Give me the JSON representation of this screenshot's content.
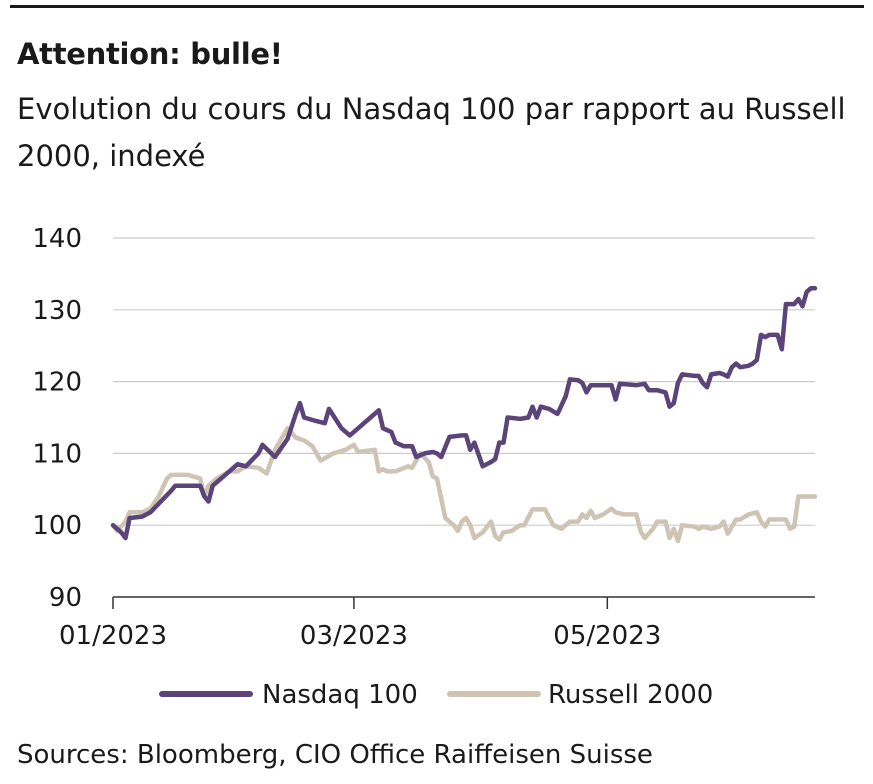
{
  "header": {
    "title": "Attention: bulle!",
    "subtitle": "Evolution du cours du Nasdaq 100 par rapport au Russell 2000, indexé"
  },
  "footer": {
    "source": "Sources: Bloomberg, CIO Office Raiffeisen Suisse"
  },
  "colors": {
    "nasdaq": "#5b4479",
    "russell": "#cfc3b3",
    "grid": "#cccccc",
    "axis": "#333333"
  },
  "chart_data": {
    "type": "line",
    "title": "",
    "xlabel": "",
    "ylabel": "",
    "ylim": [
      90,
      140
    ],
    "yticks": [
      90,
      100,
      110,
      120,
      130,
      140
    ],
    "xlim": [
      "2023-01-02",
      "2023-06-20"
    ],
    "xticks": [
      {
        "label": "01/2023",
        "date": "2023-01-02"
      },
      {
        "label": "03/2023",
        "date": "2023-03-01"
      },
      {
        "label": "05/2023",
        "date": "2023-05-01"
      }
    ],
    "grid": true,
    "legend_position": "bottom",
    "series": [
      {
        "name": "Nasdaq 100",
        "color": "#5b4479",
        "points": [
          [
            "2023-01-02",
            100
          ],
          [
            "2023-01-04",
            99
          ],
          [
            "2023-01-05",
            98.2
          ],
          [
            "2023-01-06",
            101
          ],
          [
            "2023-01-09",
            101.2
          ],
          [
            "2023-01-11",
            101.8
          ],
          [
            "2023-01-13",
            103
          ],
          [
            "2023-01-16",
            104.8
          ],
          [
            "2023-01-17",
            105.5
          ],
          [
            "2023-01-20",
            105.5
          ],
          [
            "2023-01-23",
            105.5
          ],
          [
            "2023-01-24",
            104
          ],
          [
            "2023-01-25",
            103.3
          ],
          [
            "2023-01-26",
            105.5
          ],
          [
            "2023-01-30",
            107.5
          ],
          [
            "2023-02-01",
            108.5
          ],
          [
            "2023-02-03",
            108.2
          ],
          [
            "2023-02-06",
            110
          ],
          [
            "2023-02-07",
            111.2
          ],
          [
            "2023-02-10",
            109.5
          ],
          [
            "2023-02-13",
            112
          ],
          [
            "2023-02-15",
            115.5
          ],
          [
            "2023-02-16",
            117
          ],
          [
            "2023-02-17",
            115
          ],
          [
            "2023-02-20",
            114.5
          ],
          [
            "2023-02-22",
            114.2
          ],
          [
            "2023-02-23",
            116.2
          ],
          [
            "2023-02-26",
            113.5
          ],
          [
            "2023-02-28",
            112.5
          ],
          [
            "2023-03-02",
            113.5
          ],
          [
            "2023-03-05",
            115
          ],
          [
            "2023-03-07",
            116
          ],
          [
            "2023-03-08",
            113.5
          ],
          [
            "2023-03-10",
            113
          ],
          [
            "2023-03-11",
            111.5
          ],
          [
            "2023-03-13",
            111
          ],
          [
            "2023-03-15",
            111
          ],
          [
            "2023-03-16",
            109.5
          ],
          [
            "2023-03-18",
            110
          ],
          [
            "2023-03-20",
            110.2
          ],
          [
            "2023-03-21",
            110
          ],
          [
            "2023-03-22",
            109.5
          ],
          [
            "2023-03-24",
            112.3
          ],
          [
            "2023-03-27",
            112.5
          ],
          [
            "2023-03-28",
            112.5
          ],
          [
            "2023-03-29",
            110.5
          ],
          [
            "2023-03-30",
            111.5
          ],
          [
            "2023-04-01",
            108.2
          ],
          [
            "2023-04-03",
            108.8
          ],
          [
            "2023-04-04",
            109.2
          ],
          [
            "2023-04-05",
            111.5
          ],
          [
            "2023-04-06",
            111.5
          ],
          [
            "2023-04-07",
            115
          ],
          [
            "2023-04-10",
            114.8
          ],
          [
            "2023-04-12",
            115
          ],
          [
            "2023-04-13",
            116.5
          ],
          [
            "2023-04-14",
            115
          ],
          [
            "2023-04-15",
            116.5
          ],
          [
            "2023-04-17",
            116.2
          ],
          [
            "2023-04-19",
            115.5
          ],
          [
            "2023-04-21",
            118
          ],
          [
            "2023-04-22",
            120.3
          ],
          [
            "2023-04-24",
            120.2
          ],
          [
            "2023-04-25",
            119.8
          ],
          [
            "2023-04-26",
            118.5
          ],
          [
            "2023-04-27",
            119.5
          ],
          [
            "2023-04-30",
            119.5
          ],
          [
            "2023-05-02",
            119.5
          ],
          [
            "2023-05-03",
            117.5
          ],
          [
            "2023-05-04",
            119.7
          ],
          [
            "2023-05-08",
            119.5
          ],
          [
            "2023-05-10",
            119.7
          ],
          [
            "2023-05-11",
            118.8
          ],
          [
            "2023-05-13",
            118.8
          ],
          [
            "2023-05-15",
            118.5
          ],
          [
            "2023-05-16",
            116.5
          ],
          [
            "2023-05-17",
            117
          ],
          [
            "2023-05-18",
            119.8
          ],
          [
            "2023-05-19",
            121
          ],
          [
            "2023-05-22",
            120.8
          ],
          [
            "2023-05-23",
            120.8
          ],
          [
            "2023-05-24",
            119.8
          ],
          [
            "2023-05-25",
            119.2
          ],
          [
            "2023-05-26",
            121
          ],
          [
            "2023-05-28",
            121.2
          ],
          [
            "2023-05-29",
            121
          ],
          [
            "2023-05-30",
            120.7
          ],
          [
            "2023-05-31",
            122
          ],
          [
            "2023-06-01",
            122.5
          ],
          [
            "2023-06-02",
            122
          ],
          [
            "2023-06-04",
            122.2
          ],
          [
            "2023-06-05",
            122.5
          ],
          [
            "2023-06-06",
            123
          ],
          [
            "2023-06-07",
            126.5
          ],
          [
            "2023-06-08",
            126.2
          ],
          [
            "2023-06-09",
            126.5
          ],
          [
            "2023-06-11",
            126.5
          ],
          [
            "2023-06-12",
            124.5
          ],
          [
            "2023-06-13",
            130.8
          ],
          [
            "2023-06-14",
            130.8
          ],
          [
            "2023-06-15",
            130.8
          ],
          [
            "2023-06-16",
            131.5
          ],
          [
            "2023-06-17",
            130.5
          ],
          [
            "2023-06-18",
            132.5
          ],
          [
            "2023-06-19",
            133
          ],
          [
            "2023-06-20",
            133
          ]
        ]
      },
      {
        "name": "Russell 2000",
        "color": "#cfc3b3",
        "points": [
          [
            "2023-01-02",
            100
          ],
          [
            "2023-01-03",
            99.2
          ],
          [
            "2023-01-05",
            100.5
          ],
          [
            "2023-01-06",
            101.8
          ],
          [
            "2023-01-09",
            101.8
          ],
          [
            "2023-01-11",
            102.3
          ],
          [
            "2023-01-13",
            104
          ],
          [
            "2023-01-15",
            106.5
          ],
          [
            "2023-01-16",
            107
          ],
          [
            "2023-01-20",
            107
          ],
          [
            "2023-01-23",
            106.5
          ],
          [
            "2023-01-24",
            104
          ],
          [
            "2023-01-25",
            105.5
          ],
          [
            "2023-01-27",
            106.5
          ],
          [
            "2023-01-30",
            107.5
          ],
          [
            "2023-02-01",
            107.5
          ],
          [
            "2023-02-03",
            108.2
          ],
          [
            "2023-02-06",
            108
          ],
          [
            "2023-02-08",
            107.2
          ],
          [
            "2023-02-10",
            110.5
          ],
          [
            "2023-02-13",
            113.5
          ],
          [
            "2023-02-15",
            112.2
          ],
          [
            "2023-02-17",
            111.8
          ],
          [
            "2023-02-19",
            111
          ],
          [
            "2023-02-21",
            109
          ],
          [
            "2023-02-24",
            110
          ],
          [
            "2023-02-27",
            110.5
          ],
          [
            "2023-03-01",
            111.2
          ],
          [
            "2023-03-02",
            110.2
          ],
          [
            "2023-03-06",
            110.5
          ],
          [
            "2023-03-07",
            107.5
          ],
          [
            "2023-03-08",
            107.8
          ],
          [
            "2023-03-09",
            107.5
          ],
          [
            "2023-03-11",
            107.5
          ],
          [
            "2023-03-14",
            108.2
          ],
          [
            "2023-03-15",
            108
          ],
          [
            "2023-03-17",
            110
          ],
          [
            "2023-03-19",
            108.8
          ],
          [
            "2023-03-20",
            106.8
          ],
          [
            "2023-03-21",
            106.5
          ],
          [
            "2023-03-23",
            101
          ],
          [
            "2023-03-25",
            100
          ],
          [
            "2023-03-26",
            99.2
          ],
          [
            "2023-03-27",
            100.5
          ],
          [
            "2023-03-28",
            101
          ],
          [
            "2023-03-29",
            100
          ],
          [
            "2023-03-30",
            98.2
          ],
          [
            "2023-04-01",
            99
          ],
          [
            "2023-04-03",
            100.5
          ],
          [
            "2023-04-04",
            98.5
          ],
          [
            "2023-04-05",
            98
          ],
          [
            "2023-04-06",
            99
          ],
          [
            "2023-04-08",
            99.2
          ],
          [
            "2023-04-10",
            100
          ],
          [
            "2023-04-11",
            100
          ],
          [
            "2023-04-13",
            102.2
          ],
          [
            "2023-04-14",
            102.2
          ],
          [
            "2023-04-16",
            102.2
          ],
          [
            "2023-04-18",
            100
          ],
          [
            "2023-04-20",
            99.5
          ],
          [
            "2023-04-22",
            100.5
          ],
          [
            "2023-04-24",
            100.5
          ],
          [
            "2023-04-25",
            101.5
          ],
          [
            "2023-04-26",
            101
          ],
          [
            "2023-04-27",
            102
          ],
          [
            "2023-04-28",
            101
          ],
          [
            "2023-04-30",
            101.5
          ],
          [
            "2023-05-02",
            102.3
          ],
          [
            "2023-05-03",
            101.8
          ],
          [
            "2023-05-05",
            101.5
          ],
          [
            "2023-05-08",
            101.5
          ],
          [
            "2023-05-09",
            99.2
          ],
          [
            "2023-05-10",
            98.2
          ],
          [
            "2023-05-12",
            99.5
          ],
          [
            "2023-05-13",
            100.5
          ],
          [
            "2023-05-15",
            100.5
          ],
          [
            "2023-05-16",
            98.2
          ],
          [
            "2023-05-17",
            99.5
          ],
          [
            "2023-05-18",
            97.8
          ],
          [
            "2023-05-19",
            100
          ],
          [
            "2023-05-22",
            99.8
          ],
          [
            "2023-05-23",
            99.5
          ],
          [
            "2023-05-24",
            99.8
          ],
          [
            "2023-05-26",
            99.5
          ],
          [
            "2023-05-28",
            99.8
          ],
          [
            "2023-05-29",
            100.5
          ],
          [
            "2023-05-30",
            98.8
          ],
          [
            "2023-06-01",
            100.8
          ],
          [
            "2023-06-02",
            100.8
          ],
          [
            "2023-06-04",
            101.5
          ],
          [
            "2023-06-06",
            101.8
          ],
          [
            "2023-06-07",
            100.5
          ],
          [
            "2023-06-08",
            99.8
          ],
          [
            "2023-06-09",
            100.8
          ],
          [
            "2023-06-13",
            100.8
          ],
          [
            "2023-06-14",
            99.5
          ],
          [
            "2023-06-15",
            99.8
          ],
          [
            "2023-06-16",
            104
          ],
          [
            "2023-06-20",
            104
          ]
        ]
      }
    ]
  }
}
